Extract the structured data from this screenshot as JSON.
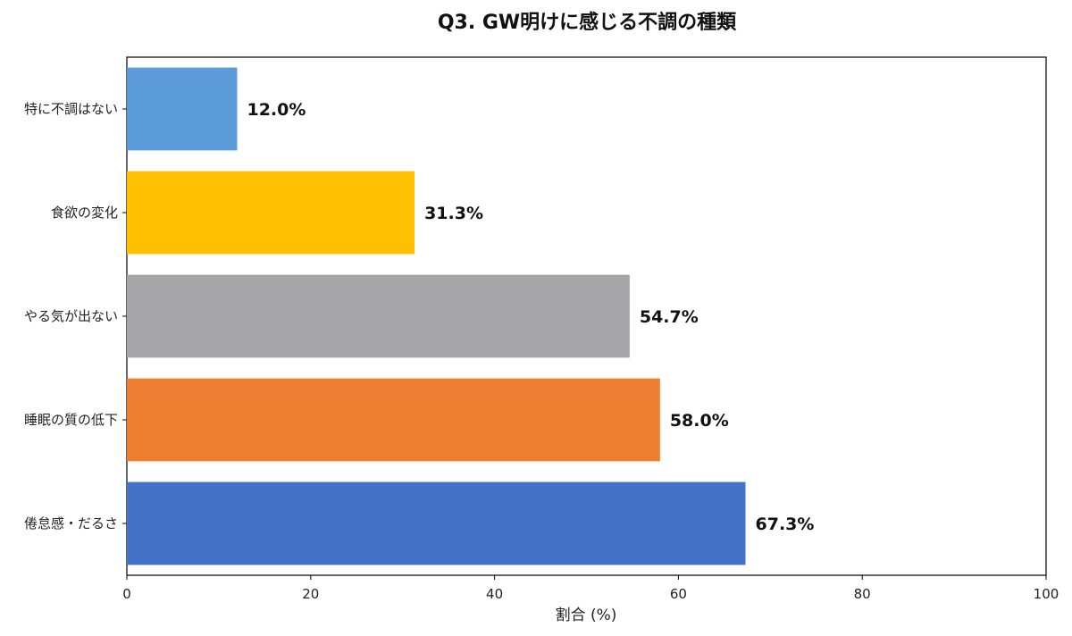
{
  "chart_data": {
    "type": "bar",
    "orientation": "horizontal",
    "title": "Q3. GW明けに感じる不調の種類",
    "xlabel": "割合 (%)",
    "ylabel": "",
    "xlim": [
      0,
      100
    ],
    "x_ticks": [
      0,
      20,
      40,
      60,
      80,
      100
    ],
    "grid": false,
    "categories": [
      "特に不調はない",
      "食欲の変化",
      "やる気が出ない",
      "睡眠の質の低下",
      "倦怠感・だるさ"
    ],
    "values": [
      12.0,
      31.3,
      54.7,
      58.0,
      67.3
    ],
    "value_labels": [
      "12.0%",
      "31.3%",
      "54.7%",
      "58.0%",
      "67.3%"
    ],
    "colors": [
      "#5b9bd9",
      "#fec000",
      "#a5a5a7",
      "#ed7d31",
      "#4472c6"
    ]
  }
}
